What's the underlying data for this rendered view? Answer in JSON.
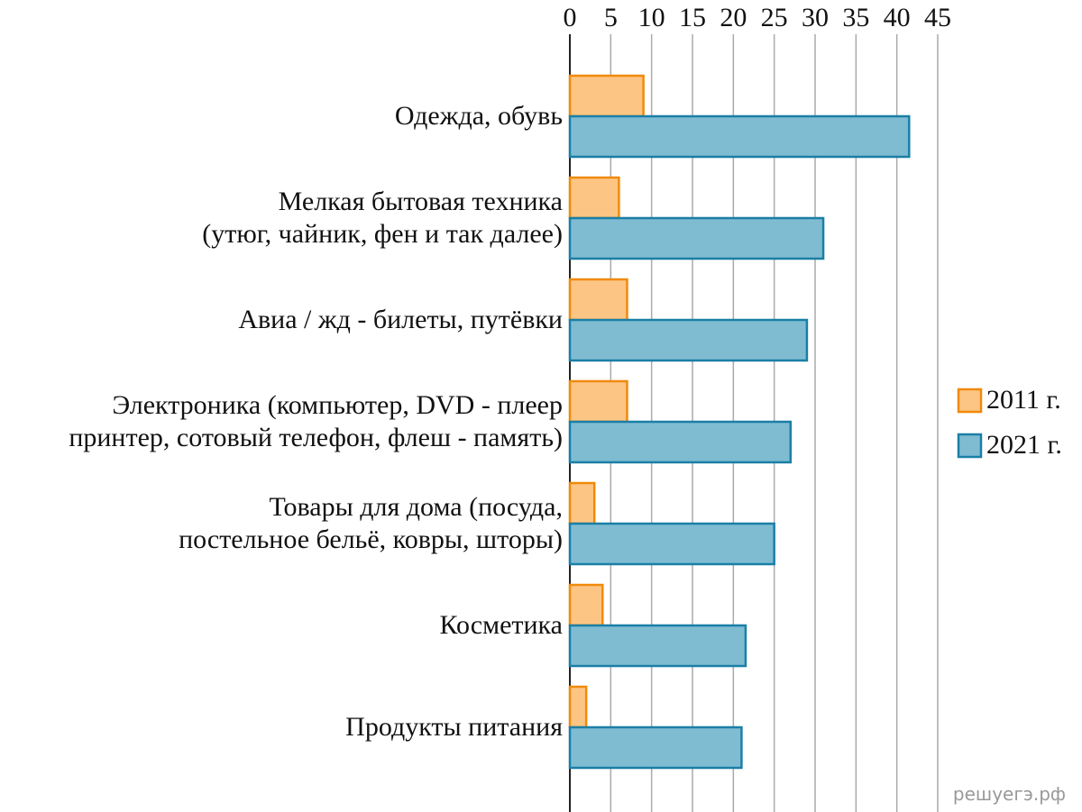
{
  "chart_data": {
    "type": "bar",
    "orientation": "horizontal",
    "categories": [
      "Одежда, обувь",
      "Мелкая бытовая техника\n(утюг, чайник, фен и так далее)",
      "Авиа / жд - билеты, путёвки",
      "Электроника (компьютер, DVD - плеер\nпринтер, сотовый телефон, флеш - память)",
      "Товары для дома (посуда,\nпостельное бельё, ковры, шторы)",
      "Косметика",
      "Продукты питания"
    ],
    "series": [
      {
        "name": "2011 г.",
        "color": "#fdc584",
        "edge_color": "#f08a0a",
        "values": [
          9,
          6,
          7,
          7,
          3,
          4,
          2
        ]
      },
      {
        "name": "2021 г.",
        "color": "#7fbcd2",
        "edge_color": "#1a7fa6",
        "values": [
          41.5,
          31,
          29,
          27,
          25,
          21.5,
          21
        ]
      }
    ],
    "xlim": [
      0,
      45
    ],
    "xticks": [
      0,
      5,
      10,
      15,
      20,
      25,
      30,
      35,
      40,
      45
    ],
    "grid": true,
    "legend": "right",
    "watermark": "решуегэ.рф"
  }
}
